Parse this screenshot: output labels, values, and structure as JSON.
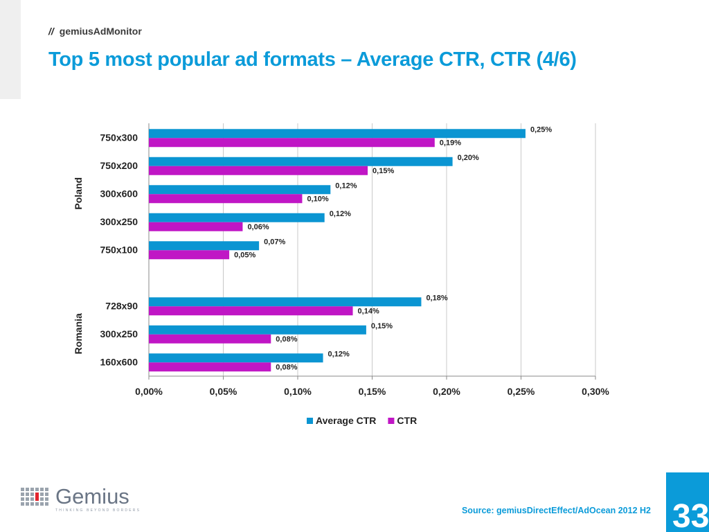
{
  "header": {
    "slashes": "//",
    "brand": "gemiusAdMonitor"
  },
  "title": "Top 5 most popular ad formats – Average CTR, CTR (4/6)",
  "chart_data": {
    "type": "bar",
    "orientation": "horizontal",
    "groups": [
      {
        "name": "Poland",
        "categories": [
          "750x300",
          "750x200",
          "300x600",
          "300x250",
          "750x100"
        ]
      },
      {
        "name": "Romania",
        "categories": [
          "728x90",
          "300x250",
          "160x600"
        ]
      }
    ],
    "series": [
      {
        "name": "Average CTR",
        "color": "#0b95d2",
        "values": [
          0.253,
          0.204,
          0.122,
          0.118,
          0.074,
          0.183,
          0.146,
          0.117
        ],
        "labels": [
          "0,25%",
          "0,20%",
          "0,12%",
          "0,12%",
          "0,07%",
          "0,18%",
          "0,15%",
          "0,12%"
        ]
      },
      {
        "name": "CTR",
        "color": "#c016c5",
        "values": [
          0.192,
          0.147,
          0.103,
          0.063,
          0.054,
          0.137,
          0.082,
          0.082
        ],
        "labels": [
          "0,19%",
          "0,15%",
          "0,10%",
          "0,06%",
          "0,05%",
          "0,14%",
          "0,08%",
          "0,08%"
        ]
      }
    ],
    "xlim": [
      0,
      0.3
    ],
    "xticks": [
      0,
      0.05,
      0.1,
      0.15,
      0.2,
      0.25,
      0.3
    ],
    "xtick_labels": [
      "0,00%",
      "0,05%",
      "0,10%",
      "0,15%",
      "0,20%",
      "0,25%",
      "0,30%"
    ],
    "grid": true,
    "legend_position": "bottom"
  },
  "source": "Source: gemiusDirectEffect/AdOcean 2012 H2",
  "page_number": "33",
  "logo": {
    "word": "Gemius",
    "tagline": "THINKING BEYOND BORDERS"
  }
}
